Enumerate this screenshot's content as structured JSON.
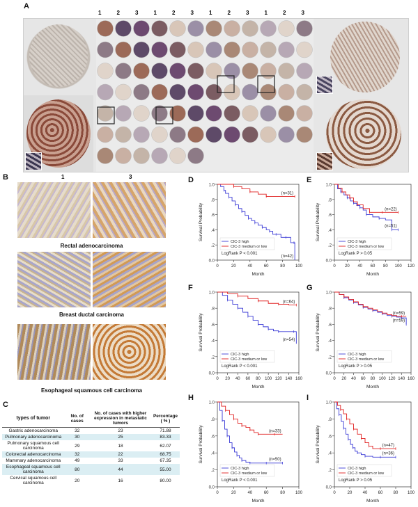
{
  "panels": {
    "A": "A",
    "B": "B",
    "C": "C",
    "D": "D",
    "E": "E",
    "F": "F",
    "G": "G",
    "H": "H",
    "I": "I"
  },
  "tma": {
    "column_numbers": [
      "1",
      "2",
      "3",
      "1",
      "2",
      "3",
      "1",
      "2",
      "3",
      "1",
      "2",
      "3"
    ],
    "rows": 7
  },
  "ihc": {
    "column_labels": [
      "1",
      "3"
    ],
    "captions": [
      "Rectal adenocarcinoma",
      "Breast ductal carcinoma",
      "Esophageal squamous cell carcinoma"
    ]
  },
  "table": {
    "headers": [
      "types of tumor",
      "No. of cases",
      "No. of cases with higher expression in metastatic tumors",
      "Percentage ( % )"
    ],
    "rows": [
      [
        "Gastric adenocarcinoma",
        "32",
        "23",
        "71.88"
      ],
      [
        "Pulmonary adenocarcinoma",
        "30",
        "25",
        "83.33"
      ],
      [
        "Pulmonary squamous cell carcinoma",
        "29",
        "18",
        "62.07"
      ],
      [
        "Colorectal adenocarcinoma",
        "32",
        "22",
        "68.75"
      ],
      [
        "Mammary adenocarcinoma",
        "49",
        "33",
        "67.35"
      ],
      [
        "Esophageal squamous cell carcinoma",
        "80",
        "44",
        "55.00"
      ],
      [
        "Cervical squamous cell carcinoma",
        "20",
        "16",
        "80.00"
      ]
    ]
  },
  "colors": {
    "high": "#3b3bd6",
    "low": "#e02020"
  },
  "chart_data": [
    {
      "id": "D",
      "type": "line",
      "xlabel": "Month",
      "ylabel": "Survival Probability",
      "xlim": [
        0,
        100
      ],
      "xticks": [
        0,
        20,
        40,
        60,
        80,
        100
      ],
      "ylim": [
        0,
        1
      ],
      "yticks": [
        "0.0",
        ".2",
        ".4",
        ".6",
        ".8",
        "1.0"
      ],
      "series": [
        {
          "name": "ClC-3 high",
          "label": "(n=42)",
          "x": [
            0,
            4,
            8,
            10,
            14,
            18,
            22,
            26,
            30,
            34,
            38,
            42,
            46,
            50,
            55,
            60,
            64,
            68,
            72,
            78,
            84,
            90,
            94,
            95
          ],
          "y": [
            1,
            0.97,
            0.92,
            0.88,
            0.83,
            0.78,
            0.73,
            0.68,
            0.64,
            0.59,
            0.55,
            0.52,
            0.49,
            0.46,
            0.43,
            0.4,
            0.38,
            0.34,
            0.34,
            0.3,
            0.3,
            0.23,
            0.23,
            0
          ]
        },
        {
          "name": "ClC-3 medium or low",
          "label": "(n=31)",
          "x": [
            0,
            10,
            20,
            30,
            40,
            50,
            60,
            70,
            95
          ],
          "y": [
            1,
            1,
            0.97,
            0.94,
            0.9,
            0.87,
            0.84,
            0.84,
            0.84
          ]
        }
      ],
      "annotation": "LogRank  P < 0.001"
    },
    {
      "id": "E",
      "type": "line",
      "xlabel": "Month",
      "ylabel": "Survival Probability",
      "xlim": [
        0,
        120
      ],
      "xticks": [
        0,
        20,
        40,
        60,
        80,
        100,
        120
      ],
      "ylim": [
        0,
        1
      ],
      "yticks": [
        "0.0",
        ".2",
        ".4",
        ".6",
        ".8",
        "1.0"
      ],
      "series": [
        {
          "name": "ClC-3 high",
          "label": "(n=51)",
          "x": [
            0,
            5,
            10,
            15,
            20,
            25,
            30,
            35,
            40,
            45,
            50,
            60,
            70,
            80,
            90,
            95,
            100
          ],
          "y": [
            1,
            0.94,
            0.9,
            0.86,
            0.82,
            0.78,
            0.75,
            0.72,
            0.69,
            0.66,
            0.6,
            0.57,
            0.55,
            0.53,
            0.4,
            0.4,
            0.4
          ]
        },
        {
          "name": "ClC-3 medium or low",
          "label": "(n=22)",
          "x": [
            0,
            6,
            12,
            18,
            24,
            30,
            36,
            45,
            55,
            65,
            75,
            85,
            100
          ],
          "y": [
            1,
            0.95,
            0.9,
            0.86,
            0.82,
            0.77,
            0.73,
            0.68,
            0.63,
            0.63,
            0.63,
            0.63,
            0.63
          ]
        }
      ],
      "annotation": "LogRank  P > 0.05"
    },
    {
      "id": "F",
      "type": "line",
      "xlabel": "Month",
      "ylabel": "Survival Probability",
      "xlim": [
        0,
        160
      ],
      "xticks": [
        0,
        20,
        40,
        60,
        80,
        100,
        120,
        140,
        160
      ],
      "ylim": [
        0,
        1
      ],
      "yticks": [
        "0.0",
        ".2",
        ".4",
        ".6",
        ".8",
        "1.0"
      ],
      "series": [
        {
          "name": "ClC-3 high",
          "label": "(n=54)",
          "x": [
            0,
            10,
            20,
            30,
            40,
            50,
            60,
            70,
            80,
            90,
            100,
            110,
            120,
            140,
            150,
            155
          ],
          "y": [
            1,
            0.96,
            0.9,
            0.85,
            0.8,
            0.75,
            0.7,
            0.65,
            0.6,
            0.57,
            0.54,
            0.52,
            0.51,
            0.51,
            0.51,
            0.36
          ]
        },
        {
          "name": "ClC-3 medium or low",
          "label": "(n=64)",
          "x": [
            0,
            20,
            40,
            60,
            80,
            100,
            120,
            140,
            155
          ],
          "y": [
            1,
            0.98,
            0.95,
            0.92,
            0.89,
            0.86,
            0.85,
            0.84,
            0.84
          ]
        }
      ],
      "annotation": "LogRank  P < 0.001"
    },
    {
      "id": "G",
      "type": "line",
      "xlabel": "Month",
      "ylabel": "Survival Probability",
      "xlim": [
        0,
        160
      ],
      "xticks": [
        0,
        20,
        40,
        60,
        80,
        100,
        120,
        140,
        160
      ],
      "ylim": [
        0,
        1
      ],
      "yticks": [
        "0.0",
        ".2",
        ".4",
        ".6",
        ".8",
        "1.0"
      ],
      "series": [
        {
          "name": "ClC-3 high",
          "label": "(n=59)",
          "x": [
            0,
            10,
            20,
            30,
            40,
            50,
            60,
            70,
            80,
            90,
            100,
            110,
            120,
            130,
            140,
            148,
            150
          ],
          "y": [
            1,
            0.97,
            0.93,
            0.9,
            0.87,
            0.84,
            0.81,
            0.79,
            0.77,
            0.75,
            0.73,
            0.71,
            0.7,
            0.69,
            0.68,
            0.68,
            0.6
          ]
        },
        {
          "name": "ClC-3 medium or low",
          "label": "(n=59)",
          "x": [
            0,
            10,
            20,
            30,
            40,
            50,
            60,
            70,
            80,
            90,
            100,
            110,
            120,
            130,
            140,
            150
          ],
          "y": [
            1,
            0.97,
            0.94,
            0.91,
            0.88,
            0.85,
            0.82,
            0.8,
            0.78,
            0.76,
            0.74,
            0.72,
            0.71,
            0.7,
            0.7,
            0.7
          ]
        }
      ],
      "annotation": "LogRank  P > 0.05"
    },
    {
      "id": "H",
      "type": "line",
      "xlabel": "Month",
      "ylabel": "Survival Probability",
      "xlim": [
        0,
        100
      ],
      "xticks": [
        0,
        20,
        40,
        60,
        80,
        100
      ],
      "ylim": [
        0,
        1
      ],
      "yticks": [
        "0.0",
        ".2",
        ".4",
        ".6",
        ".8",
        "1.0"
      ],
      "series": [
        {
          "name": "ClC-3 high",
          "label": "(n=50)",
          "x": [
            0,
            3,
            6,
            9,
            12,
            15,
            18,
            21,
            24,
            27,
            30,
            35,
            40,
            50,
            60,
            70,
            80
          ],
          "y": [
            1,
            0.9,
            0.78,
            0.68,
            0.6,
            0.52,
            0.46,
            0.41,
            0.37,
            0.34,
            0.31,
            0.29,
            0.28,
            0.28,
            0.28,
            0.28,
            0.28
          ]
        },
        {
          "name": "ClC-3 medium or low",
          "label": "(n=33)",
          "x": [
            0,
            5,
            10,
            15,
            20,
            25,
            30,
            35,
            40,
            45,
            50,
            60,
            70,
            80
          ],
          "y": [
            1,
            0.95,
            0.9,
            0.85,
            0.8,
            0.75,
            0.72,
            0.7,
            0.67,
            0.64,
            0.62,
            0.62,
            0.62,
            0.62
          ]
        }
      ],
      "annotation": "LogRank  P < 0.001"
    },
    {
      "id": "I",
      "type": "line",
      "xlabel": "Month",
      "ylabel": "Survival Probability",
      "xlim": [
        0,
        100
      ],
      "xticks": [
        0,
        20,
        40,
        60,
        80,
        100
      ],
      "ylim": [
        0,
        1
      ],
      "yticks": [
        "0.0",
        ".2",
        ".4",
        ".6",
        ".8",
        "1.0"
      ],
      "series": [
        {
          "name": "ClC-3 high",
          "label": "(n=36)",
          "x": [
            0,
            3,
            6,
            9,
            12,
            15,
            18,
            21,
            24,
            27,
            30,
            35,
            40,
            50,
            60,
            70,
            80
          ],
          "y": [
            1,
            0.92,
            0.85,
            0.77,
            0.69,
            0.62,
            0.56,
            0.5,
            0.46,
            0.42,
            0.4,
            0.38,
            0.36,
            0.35,
            0.35,
            0.35,
            0.35
          ]
        },
        {
          "name": "ClC-3 medium or low",
          "label": "(n=47)",
          "x": [
            0,
            4,
            8,
            12,
            16,
            20,
            25,
            30,
            35,
            40,
            45,
            50,
            60,
            70,
            80
          ],
          "y": [
            1,
            0.96,
            0.91,
            0.86,
            0.8,
            0.74,
            0.68,
            0.62,
            0.57,
            0.52,
            0.48,
            0.45,
            0.45,
            0.45,
            0.45
          ]
        }
      ],
      "annotation": "LogRank  P > 0.05"
    }
  ],
  "legend": {
    "high": "ClC-3 high",
    "low": "ClC-3 medium or low"
  }
}
